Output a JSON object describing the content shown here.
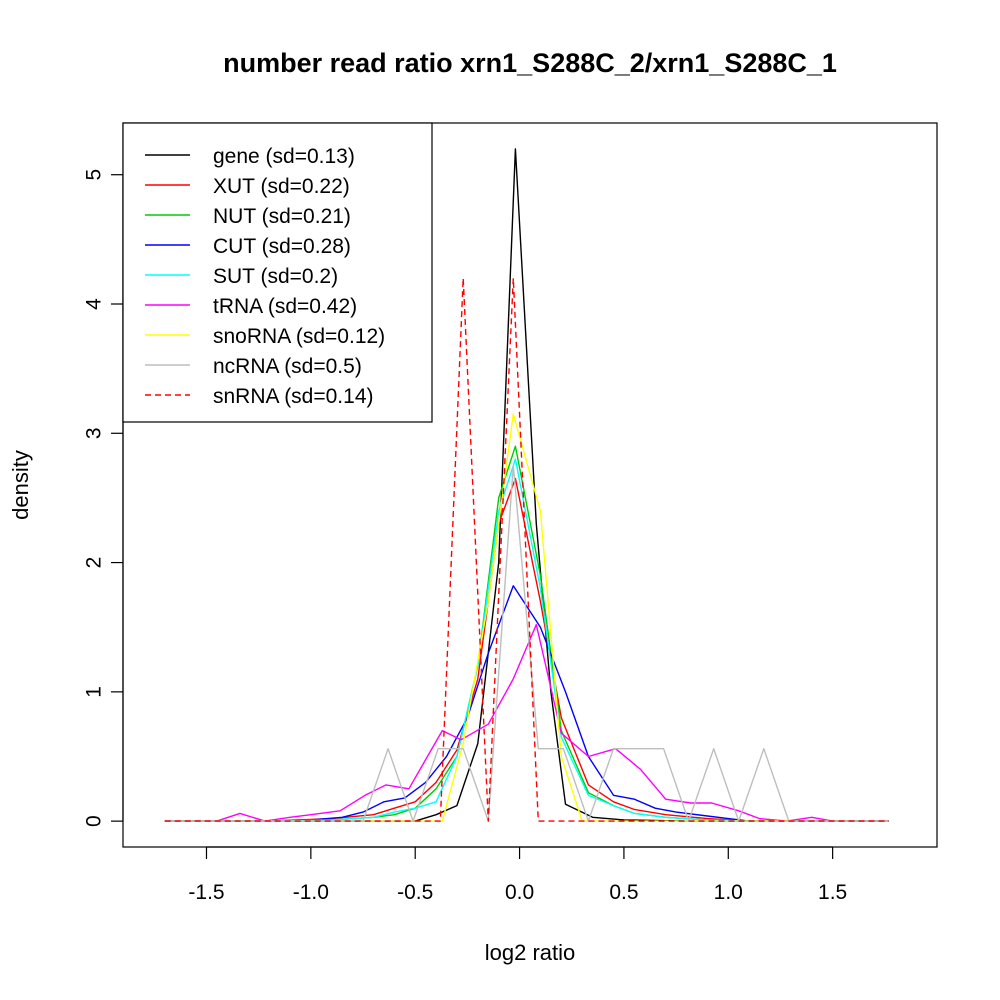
{
  "chart_data": {
    "type": "line",
    "title": "number read ratio xrn1_S288C_2/xrn1_S288C_1",
    "xlabel": "log2 ratio",
    "ylabel": "density",
    "xlim": [
      -1.9,
      2.0
    ],
    "ylim": [
      -0.2,
      5.4
    ],
    "x_ticks": [
      -1.5,
      -1.0,
      -0.5,
      0.0,
      0.5,
      1.0,
      1.5
    ],
    "x_tick_labels": [
      "-1.5",
      "-1.0",
      "-0.5",
      "0.0",
      "0.5",
      "1.0",
      "1.5"
    ],
    "y_ticks": [
      0,
      1,
      2,
      3,
      4,
      5
    ],
    "y_tick_labels": [
      "0",
      "1",
      "2",
      "3",
      "4",
      "5"
    ],
    "legend_position": "top-left",
    "grid": false,
    "series": [
      {
        "name": "gene (sd=0.13)",
        "color": "#000000",
        "dash": "solid",
        "points": [
          [
            -1.7,
            0
          ],
          [
            -0.5,
            0
          ],
          [
            -0.4,
            0.05
          ],
          [
            -0.3,
            0.12
          ],
          [
            -0.2,
            0.6
          ],
          [
            -0.1,
            2.0
          ],
          [
            -0.02,
            5.2
          ],
          [
            0.08,
            2.3
          ],
          [
            0.15,
            1.0
          ],
          [
            0.22,
            0.13
          ],
          [
            0.35,
            0.03
          ],
          [
            0.5,
            0.01
          ],
          [
            0.8,
            0
          ],
          [
            1.77,
            0
          ]
        ]
      },
      {
        "name": "XUT (sd=0.22)",
        "color": "#ff0000",
        "dash": "solid",
        "points": [
          [
            -1.7,
            0
          ],
          [
            -1.2,
            0
          ],
          [
            -0.9,
            0.02
          ],
          [
            -0.7,
            0.05
          ],
          [
            -0.6,
            0.1
          ],
          [
            -0.5,
            0.15
          ],
          [
            -0.4,
            0.3
          ],
          [
            -0.3,
            0.55
          ],
          [
            -0.2,
            1.1
          ],
          [
            -0.1,
            2.3
          ],
          [
            -0.02,
            2.65
          ],
          [
            0.1,
            1.7
          ],
          [
            0.2,
            0.8
          ],
          [
            0.33,
            0.28
          ],
          [
            0.45,
            0.15
          ],
          [
            0.55,
            0.09
          ],
          [
            0.7,
            0.05
          ],
          [
            0.9,
            0.02
          ],
          [
            1.1,
            0
          ],
          [
            1.77,
            0
          ]
        ]
      },
      {
        "name": "NUT (sd=0.21)",
        "color": "#00cd00",
        "dash": "solid",
        "points": [
          [
            -1.7,
            0
          ],
          [
            -1.2,
            0
          ],
          [
            -0.9,
            0.01
          ],
          [
            -0.7,
            0.03
          ],
          [
            -0.6,
            0.05
          ],
          [
            -0.5,
            0.1
          ],
          [
            -0.4,
            0.25
          ],
          [
            -0.3,
            0.5
          ],
          [
            -0.2,
            1.2
          ],
          [
            -0.1,
            2.5
          ],
          [
            -0.02,
            2.9
          ],
          [
            0.1,
            1.9
          ],
          [
            0.2,
            0.7
          ],
          [
            0.33,
            0.22
          ],
          [
            0.45,
            0.12
          ],
          [
            0.55,
            0.06
          ],
          [
            0.7,
            0.03
          ],
          [
            0.9,
            0.01
          ],
          [
            1.1,
            0
          ],
          [
            1.77,
            0
          ]
        ]
      },
      {
        "name": "CUT (sd=0.28)",
        "color": "#0000ff",
        "dash": "solid",
        "points": [
          [
            -1.7,
            0
          ],
          [
            -1.2,
            0
          ],
          [
            -1.0,
            0.01
          ],
          [
            -0.85,
            0.03
          ],
          [
            -0.75,
            0.07
          ],
          [
            -0.65,
            0.15
          ],
          [
            -0.55,
            0.18
          ],
          [
            -0.45,
            0.3
          ],
          [
            -0.35,
            0.5
          ],
          [
            -0.25,
            0.8
          ],
          [
            -0.15,
            1.3
          ],
          [
            -0.03,
            1.82
          ],
          [
            0.1,
            1.5
          ],
          [
            0.22,
            1.0
          ],
          [
            0.33,
            0.5
          ],
          [
            0.45,
            0.2
          ],
          [
            0.55,
            0.17
          ],
          [
            0.65,
            0.1
          ],
          [
            0.75,
            0.07
          ],
          [
            0.9,
            0.04
          ],
          [
            1.0,
            0.02
          ],
          [
            1.1,
            0
          ],
          [
            1.77,
            0
          ]
        ]
      },
      {
        "name": "SUT (sd=0.2)",
        "color": "#00ffff",
        "dash": "solid",
        "points": [
          [
            -1.7,
            0
          ],
          [
            -1.2,
            0
          ],
          [
            -0.9,
            0.01
          ],
          [
            -0.7,
            0.03
          ],
          [
            -0.6,
            0.07
          ],
          [
            -0.5,
            0.1
          ],
          [
            -0.4,
            0.15
          ],
          [
            -0.3,
            0.5
          ],
          [
            -0.2,
            1.2
          ],
          [
            -0.1,
            2.4
          ],
          [
            -0.02,
            2.8
          ],
          [
            0.1,
            1.8
          ],
          [
            0.2,
            0.65
          ],
          [
            0.33,
            0.2
          ],
          [
            0.45,
            0.12
          ],
          [
            0.55,
            0.06
          ],
          [
            0.7,
            0.03
          ],
          [
            0.9,
            0.01
          ],
          [
            1.1,
            0
          ],
          [
            1.77,
            0
          ]
        ]
      },
      {
        "name": "tRNA (sd=0.42)",
        "color": "#ff00ff",
        "dash": "solid",
        "points": [
          [
            -1.7,
            0
          ],
          [
            -1.45,
            0
          ],
          [
            -1.34,
            0.06
          ],
          [
            -1.22,
            0
          ],
          [
            -1.1,
            0.03
          ],
          [
            -1.0,
            0.05
          ],
          [
            -0.86,
            0.08
          ],
          [
            -0.74,
            0.2
          ],
          [
            -0.64,
            0.28
          ],
          [
            -0.53,
            0.25
          ],
          [
            -0.37,
            0.7
          ],
          [
            -0.28,
            0.63
          ],
          [
            -0.15,
            0.75
          ],
          [
            -0.03,
            1.1
          ],
          [
            0.08,
            1.52
          ],
          [
            0.2,
            0.68
          ],
          [
            0.33,
            0.5
          ],
          [
            0.46,
            0.56
          ],
          [
            0.58,
            0.4
          ],
          [
            0.7,
            0.17
          ],
          [
            0.82,
            0.14
          ],
          [
            0.92,
            0.14
          ],
          [
            1.05,
            0.08
          ],
          [
            1.15,
            0.02
          ],
          [
            1.28,
            0
          ],
          [
            1.4,
            0.03
          ],
          [
            1.5,
            0
          ],
          [
            1.77,
            0
          ]
        ]
      },
      {
        "name": "snoRNA (sd=0.12)",
        "color": "#ffff00",
        "dash": "solid",
        "points": [
          [
            -1.7,
            0
          ],
          [
            -0.5,
            0
          ],
          [
            -0.37,
            0
          ],
          [
            -0.27,
            0.6
          ],
          [
            -0.15,
            1.7
          ],
          [
            -0.03,
            3.15
          ],
          [
            0.1,
            2.4
          ],
          [
            0.2,
            0.5
          ],
          [
            0.3,
            0
          ],
          [
            1.77,
            0
          ]
        ]
      },
      {
        "name": "ncRNA (sd=0.5)",
        "color": "#bebebe",
        "dash": "solid",
        "points": [
          [
            -1.7,
            0
          ],
          [
            -0.75,
            0
          ],
          [
            -0.63,
            0.56
          ],
          [
            -0.51,
            0
          ],
          [
            -0.39,
            0.56
          ],
          [
            -0.27,
            0.56
          ],
          [
            -0.15,
            0
          ],
          [
            -0.03,
            2.75
          ],
          [
            0.09,
            0.56
          ],
          [
            0.21,
            0.56
          ],
          [
            0.33,
            0
          ],
          [
            0.45,
            0.56
          ],
          [
            0.57,
            0.56
          ],
          [
            0.69,
            0.56
          ],
          [
            0.81,
            0
          ],
          [
            0.93,
            0.56
          ],
          [
            1.05,
            0
          ],
          [
            1.17,
            0.56
          ],
          [
            1.29,
            0
          ],
          [
            1.77,
            0
          ]
        ]
      },
      {
        "name": "snRNA (sd=0.14)",
        "color": "#ff0000",
        "dash": "dashed",
        "points": [
          [
            -1.7,
            0
          ],
          [
            -0.5,
            0
          ],
          [
            -0.38,
            0
          ],
          [
            -0.27,
            4.2
          ],
          [
            -0.15,
            0
          ],
          [
            -0.03,
            4.2
          ],
          [
            0.09,
            0
          ],
          [
            1.77,
            0
          ]
        ]
      }
    ]
  }
}
